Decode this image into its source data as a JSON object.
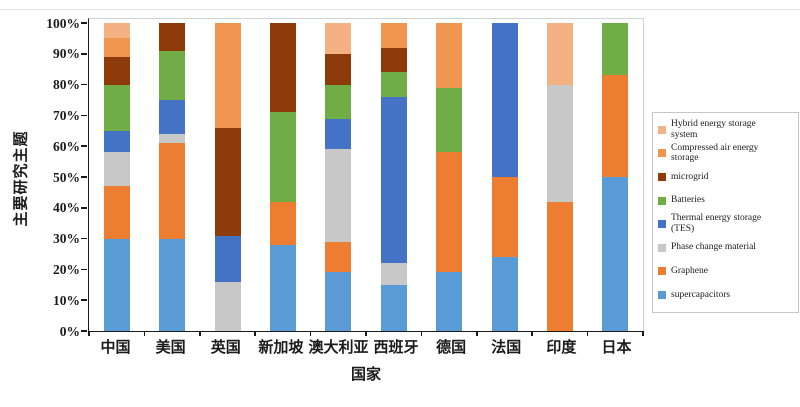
{
  "chart_data": {
    "type": "bar",
    "variant": "stacked-100-percent",
    "title": "",
    "xlabel": "国家",
    "ylabel": "主要研究主题",
    "ylim": [
      0,
      100
    ],
    "grid": false,
    "plot_background": "#ffffff",
    "y_ticks": [
      {
        "value": 0,
        "label": "0%"
      },
      {
        "value": 10,
        "label": "10%"
      },
      {
        "value": 20,
        "label": "20%"
      },
      {
        "value": 30,
        "label": "30%"
      },
      {
        "value": 40,
        "label": "40%"
      },
      {
        "value": 50,
        "label": "50%"
      },
      {
        "value": 60,
        "label": "60%"
      },
      {
        "value": 70,
        "label": "70%"
      },
      {
        "value": 80,
        "label": "80%"
      },
      {
        "value": 90,
        "label": "90%"
      },
      {
        "value": 100,
        "label": "100%"
      }
    ],
    "categories": [
      "中国",
      "美国",
      "英国",
      "新加坡",
      "澳大利亚",
      "西班牙",
      "德国",
      "法国",
      "印度",
      "日本"
    ],
    "stack_order_note": "series listed bottom-to-top of each bar; values are percent per country",
    "series": [
      {
        "name": "supercapacitors",
        "color": "#5B9BD5",
        "values": [
          30,
          30,
          0,
          28,
          19,
          15,
          19,
          24,
          0,
          50
        ]
      },
      {
        "name": "Graphene",
        "color": "#ED7D31",
        "values": [
          17,
          31,
          0,
          14,
          10,
          0,
          39,
          26,
          42,
          33
        ]
      },
      {
        "name": "Phase change material",
        "color": "#C8C8C8",
        "values": [
          11,
          3,
          16,
          0,
          30,
          7,
          0,
          0,
          38,
          0
        ]
      },
      {
        "name": "Thermal energy storage (TES)",
        "color": "#4472C4",
        "values": [
          7,
          11,
          15,
          0,
          10,
          54,
          0,
          50,
          0,
          0
        ]
      },
      {
        "name": "Batteries",
        "color": "#70AD47",
        "values": [
          15,
          16,
          0,
          29,
          11,
          8,
          21,
          0,
          0,
          17
        ]
      },
      {
        "name": "microgrid",
        "color": "#8E3B0C",
        "values": [
          9,
          9,
          35,
          29,
          10,
          8,
          0,
          0,
          0,
          0
        ]
      },
      {
        "name": "Compressed air energy storage",
        "color": "#F0954F",
        "values": [
          6,
          0,
          34,
          0,
          0,
          8,
          21,
          0,
          0,
          0
        ]
      },
      {
        "name": "Hybrid energy storage system",
        "color": "#F4B183",
        "values": [
          5,
          0,
          0,
          0,
          10,
          0,
          0,
          0,
          20,
          0
        ]
      }
    ],
    "legend": {
      "position": "right",
      "items": [
        {
          "label": "Hybrid energy storage\nsystem",
          "color": "#F4B183"
        },
        {
          "label": "Compressed air energy\nstorage",
          "color": "#F0954F"
        },
        {
          "label": "microgrid",
          "color": "#8E3B0C"
        },
        {
          "label": "Batteries",
          "color": "#70AD47"
        },
        {
          "label": "Thermal energy storage\n(TES)",
          "color": "#4472C4"
        },
        {
          "label": "Phase change material",
          "color": "#C8C8C8"
        },
        {
          "label": "Graphene",
          "color": "#ED7D31"
        },
        {
          "label": "supercapacitors",
          "color": "#5B9BD5"
        }
      ]
    }
  }
}
